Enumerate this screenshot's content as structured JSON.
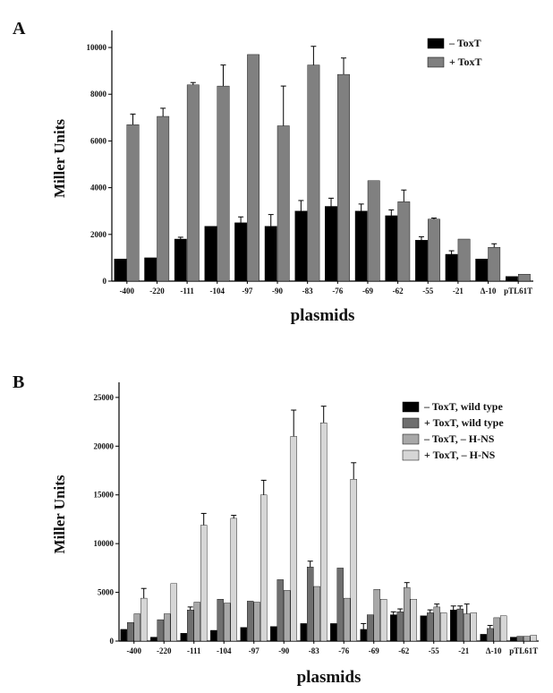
{
  "chart_data": [
    {
      "type": "bar",
      "panel": "A",
      "xlabel": "plasmids",
      "ylabel": "Miller Units",
      "ylim": [
        0,
        10500
      ],
      "yticks": [
        0,
        2000,
        4000,
        6000,
        8000,
        10000
      ],
      "categories": [
        "-400",
        "-220",
        "-111",
        "-104",
        "-97",
        "-90",
        "-83",
        "-76",
        "-69",
        "-62",
        "-55",
        "-21",
        "Δ-10",
        "pTL61T"
      ],
      "legend_position": "top-right",
      "series": [
        {
          "name": "– ToxT",
          "color": "#000000",
          "values": [
            950,
            1000,
            1800,
            2350,
            2500,
            2350,
            3000,
            3200,
            3000,
            2800,
            1750,
            1150,
            950,
            200
          ],
          "errors": [
            0,
            0,
            80,
            0,
            250,
            500,
            450,
            350,
            300,
            250,
            150,
            150,
            0,
            0
          ]
        },
        {
          "name": "+ ToxT",
          "color": "#808080",
          "values": [
            6700,
            7050,
            8400,
            8350,
            9700,
            6650,
            9250,
            8850,
            4300,
            3400,
            2650,
            1800,
            1450,
            300
          ],
          "errors": [
            450,
            350,
            100,
            900,
            0,
            1700,
            800,
            700,
            0,
            500,
            50,
            0,
            150,
            0
          ]
        }
      ]
    },
    {
      "type": "bar",
      "panel": "B",
      "xlabel": "plasmids",
      "ylabel": "Miller Units",
      "ylim": [
        0,
        26000
      ],
      "yticks": [
        0,
        5000,
        10000,
        15000,
        20000,
        25000
      ],
      "categories": [
        "-400",
        "-220",
        "-111",
        "-104",
        "-97",
        "-90",
        "-83",
        "-76",
        "-69",
        "-62",
        "-55",
        "-21",
        "Δ-10",
        "pTL61T"
      ],
      "legend_position": "top-right",
      "series": [
        {
          "name": "– ToxT, wild type",
          "color": "#000000",
          "values": [
            1200,
            400,
            800,
            1100,
            1400,
            1500,
            1800,
            1800,
            1200,
            2700,
            2600,
            3200,
            700,
            400
          ],
          "errors": [
            0,
            0,
            0,
            0,
            0,
            0,
            0,
            0,
            600,
            300,
            0,
            400,
            0,
            0
          ]
        },
        {
          "name": "+ ToxT, wild type",
          "color": "#6f6f6f",
          "values": [
            1900,
            2200,
            3200,
            4300,
            4100,
            6300,
            7600,
            7500,
            2700,
            3000,
            2900,
            3300,
            1300,
            500
          ],
          "errors": [
            0,
            0,
            300,
            0,
            0,
            0,
            600,
            0,
            0,
            300,
            300,
            300,
            300,
            0
          ]
        },
        {
          "name": "– ToxT, – H-NS",
          "color": "#a8a8a8",
          "values": [
            2800,
            2800,
            4000,
            3900,
            4000,
            5200,
            5600,
            4400,
            5300,
            5500,
            3500,
            2800,
            2400,
            500
          ],
          "errors": [
            0,
            0,
            0,
            0,
            0,
            0,
            0,
            0,
            0,
            500,
            300,
            1000,
            0,
            0
          ]
        },
        {
          "name": "+ ToxT, – H-NS",
          "color": "#d6d6d6",
          "values": [
            4400,
            5900,
            11900,
            12600,
            15000,
            21000,
            22400,
            16600,
            4300,
            4300,
            2900,
            2900,
            2600,
            600
          ],
          "errors": [
            1000,
            0,
            1200,
            300,
            1500,
            2700,
            1700,
            1700,
            0,
            0,
            0,
            0,
            0,
            0
          ]
        }
      ]
    }
  ],
  "panels": {
    "a_letter": "A",
    "b_letter": "B"
  }
}
